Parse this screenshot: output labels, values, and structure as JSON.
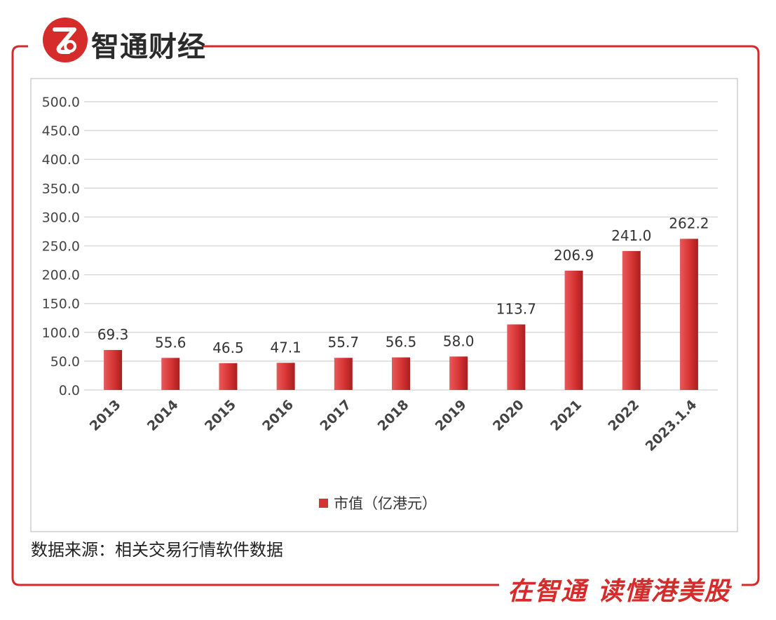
{
  "brand": {
    "name": "智通财经",
    "slogan": "在智通 读懂港美股",
    "logo_letter": "Z"
  },
  "source_note": "数据来源：相关交易行情软件数据",
  "colors": {
    "accent": "#d62b2b",
    "bar": "#d63333",
    "bar_dark": "#a81f1f",
    "grid": "#d9d9d9",
    "frame": "#d62b2b"
  },
  "chart_data": {
    "type": "bar",
    "title": "",
    "xlabel": "",
    "ylabel": "",
    "categories": [
      "2013",
      "2014",
      "2015",
      "2016",
      "2017",
      "2018",
      "2019",
      "2020",
      "2021",
      "2022",
      "2023.1.4"
    ],
    "series": [
      {
        "name": "市值（亿港元）",
        "values": [
          69.3,
          55.6,
          46.5,
          47.1,
          55.7,
          56.5,
          58.0,
          113.7,
          206.9,
          241.0,
          262.2
        ]
      }
    ],
    "ylim": [
      0,
      500
    ],
    "yticks": [
      "0.0",
      "50.0",
      "100.0",
      "150.0",
      "200.0",
      "250.0",
      "300.0",
      "350.0",
      "400.0",
      "450.0",
      "500.0"
    ],
    "data_labels": [
      "69.3",
      "55.6",
      "46.5",
      "47.1",
      "55.7",
      "56.5",
      "58.0",
      "113.7",
      "206.9",
      "241.0",
      "262.2"
    ],
    "grid": true,
    "legend_position": "bottom"
  }
}
